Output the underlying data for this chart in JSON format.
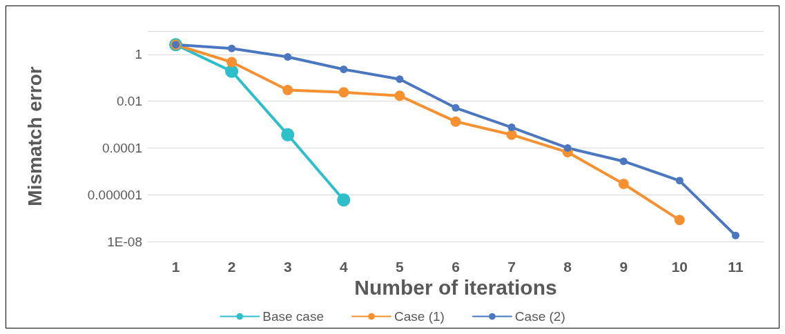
{
  "chart_data": {
    "type": "line",
    "xlabel": "Number of iterations",
    "ylabel": "Mismatch error",
    "categories": [
      "1",
      "2",
      "3",
      "4",
      "5",
      "6",
      "7",
      "8",
      "9",
      "10",
      "11"
    ],
    "series": [
      {
        "name": "Base case",
        "color": "#2ebfcb",
        "values": [
          2.6,
          0.19,
          0.00037,
          6e-07,
          null,
          null,
          null,
          null,
          null,
          null,
          null
        ]
      },
      {
        "name": "Case (1)",
        "color": "#f59130",
        "values": [
          2.6,
          0.47,
          0.03,
          0.024,
          0.017,
          0.00135,
          0.00037,
          6.6e-05,
          2.9e-06,
          8.3e-08,
          null
        ]
      },
      {
        "name": "Case (2)",
        "color": "#4a77bf",
        "values": [
          2.6,
          1.8,
          0.78,
          0.23,
          0.087,
          0.0052,
          0.00076,
          0.0001,
          2.7e-05,
          4e-06,
          1.8e-08
        ]
      }
    ],
    "log": "y",
    "ylim": [
      1e-08,
      10
    ],
    "yticks": [
      {
        "value": 1e-08,
        "label": "1E-08"
      },
      {
        "value": 1e-06,
        "label": "0.000001"
      },
      {
        "value": 0.0001,
        "label": "0.0001"
      },
      {
        "value": 0.01,
        "label": "0.01"
      },
      1,
      {
        "value": 10,
        "label": null
      }
    ],
    "grid": "y",
    "legend": "bottom",
    "marker": "circle",
    "line_style": "solid"
  }
}
